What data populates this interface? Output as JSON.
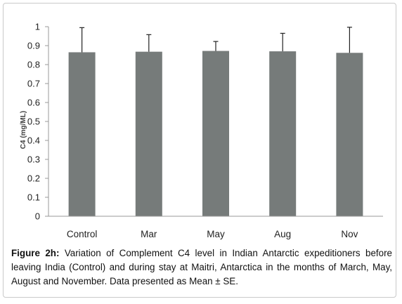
{
  "chart_data": {
    "type": "bar",
    "categories": [
      "Control",
      "Mar",
      "May",
      "Aug",
      "Nov"
    ],
    "values": [
      0.865,
      0.868,
      0.872,
      0.87,
      0.862
    ],
    "errors": [
      0.13,
      0.09,
      0.05,
      0.095,
      0.135
    ],
    "ylabel": "C4 (mg/ML)",
    "ylim": [
      0,
      1
    ],
    "yticks": [
      "0",
      "0.1",
      "0.2",
      "0.3",
      "0.4",
      "0.5",
      "0.6",
      "0.7",
      "0.8",
      "0.9",
      "1"
    ],
    "grid": false,
    "bar_color": "#767b7a",
    "axis_color": "#9a9a9a"
  },
  "caption": {
    "label": "Figure 2h:",
    "text": "Variation of Complement C4 level in Indian Antarctic expeditioners before leaving India (Control) and during stay at Maitri, Antarctica in the months of March, May, August and November. Data presented as Mean ± SE."
  }
}
